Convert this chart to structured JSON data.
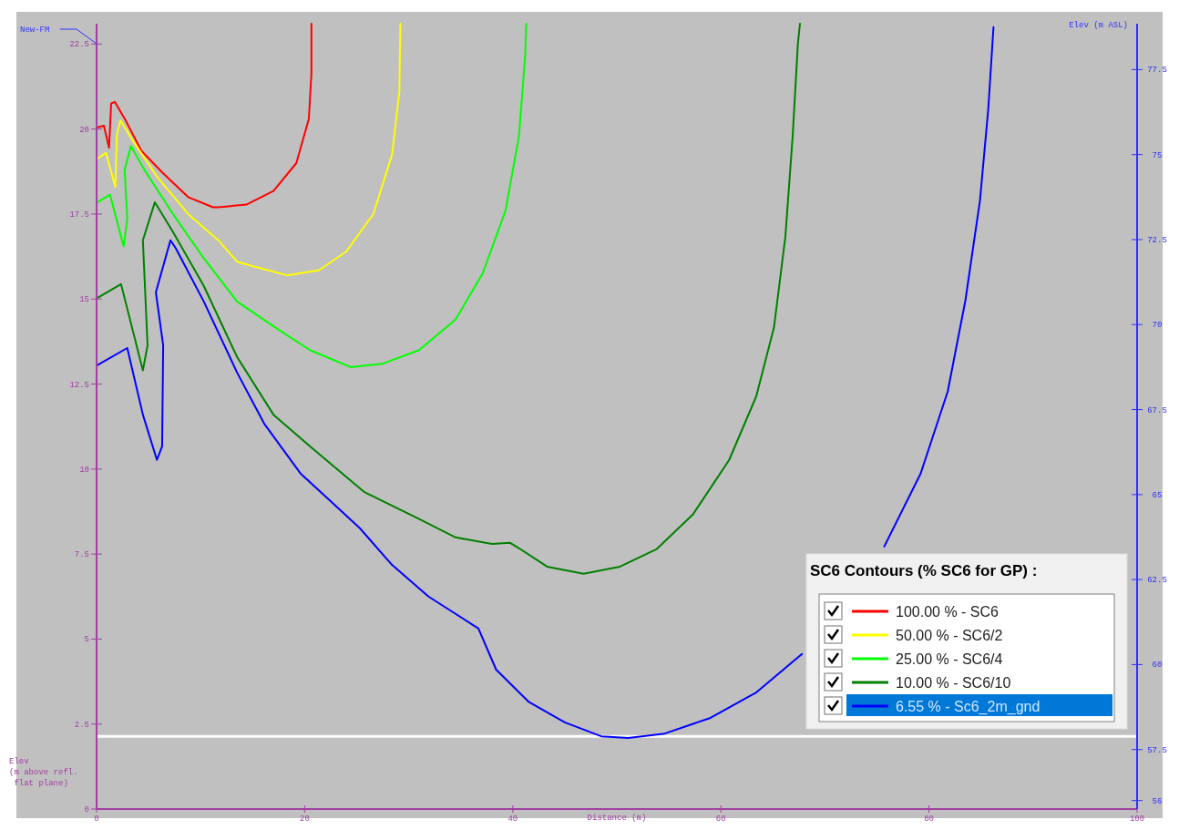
{
  "chart_data": {
    "type": "line",
    "xlabel": "Distance (m)",
    "ylabel": "Elev\n(m above refl.\n flat plane)",
    "y2label": "Elev (m ASL)",
    "legend_title": "SC6 Contours (% SC6 for GP) :",
    "legend": "bottom right",
    "xlim": [
      0,
      100
    ],
    "xticks": [
      0,
      20,
      40,
      60,
      80,
      100
    ],
    "ylim": [
      0,
      23.1
    ],
    "yticks": [
      0,
      2.5,
      5,
      7.5,
      10,
      12.5,
      15,
      17.5,
      20,
      22.5
    ],
    "y2lim": [
      55.75,
      78.85
    ],
    "y2ticks": [
      56,
      57.5,
      60,
      62.5,
      65,
      67.5,
      70,
      72.5,
      75,
      77.5
    ],
    "ref_lines": [
      {
        "axis": "y",
        "value": 2.14,
        "color": "#ffffff"
      }
    ],
    "annotations": [
      "New-FM"
    ],
    "series": [
      {
        "name": "100.00 % - SC6",
        "color": "#ff0000",
        "x": [
          0.1,
          0.7,
          1.2,
          1.4,
          1.75,
          2.8,
          4.3,
          6.4,
          8.8,
          11.2,
          11.7,
          14.4,
          17,
          19.2,
          20.4,
          20.65,
          20.65
        ],
        "values": [
          20.05,
          20.1,
          19.45,
          20.75,
          20.8,
          20.25,
          19.36,
          18.7,
          18.0,
          17.7,
          17.7,
          17.78,
          18.18,
          19,
          20.3,
          21.66,
          23.1
        ]
      },
      {
        "name": "50.00 % - SC6/2",
        "color": "#ffff00",
        "x": [
          0.1,
          0.9,
          1.8,
          1.95,
          2.3,
          3.4,
          5.8,
          8.8,
          11.8,
          13.5,
          15.2,
          18.3,
          21.4,
          24,
          26.6,
          28.4,
          29.1,
          29.2
        ],
        "values": [
          19.14,
          19.3,
          18.3,
          19.84,
          20.25,
          19.7,
          18.6,
          17.5,
          16.7,
          16.1,
          15.95,
          15.7,
          15.85,
          16.4,
          17.5,
          19.25,
          21.1,
          23.1
        ]
      },
      {
        "name": "25.00 % - SC6/4",
        "color": "#00ff00",
        "x": [
          0.1,
          1.3,
          2.6,
          2.95,
          2.7,
          3.3,
          4.6,
          7.35,
          10.3,
          13.5,
          17,
          20.5,
          24.4,
          27.5,
          31,
          34.5,
          37.1,
          39.3,
          40.6,
          41.2,
          41.3
        ],
        "values": [
          17.85,
          18.07,
          16.55,
          17.35,
          18.8,
          19.5,
          18.8,
          17.5,
          16.2,
          14.93,
          14.2,
          13.5,
          13.0,
          13.1,
          13.5,
          14.4,
          15.75,
          17.6,
          19.8,
          22.2,
          23.1
        ]
      },
      {
        "name": "10.00 % - SC6/10",
        "color": "#008000",
        "x": [
          0.1,
          2.35,
          4.45,
          4.9,
          4.45,
          5.6,
          7.35,
          10.3,
          13.5,
          17,
          20.5,
          25.7,
          31,
          34.5,
          38,
          39.75,
          40.6,
          43.3,
          46.8,
          50.3,
          53.8,
          57.3,
          60.8,
          63.4,
          65.1,
          66.2,
          66.9,
          67.4,
          67.6
        ],
        "values": [
          15.04,
          15.44,
          12.9,
          13.64,
          16.73,
          17.85,
          16.97,
          15.39,
          13.3,
          11.6,
          10.67,
          9.33,
          8.53,
          7.99,
          7.8,
          7.83,
          7.67,
          7.13,
          6.92,
          7.13,
          7.64,
          8.66,
          10.27,
          12.14,
          14.16,
          16.84,
          19.8,
          22.5,
          23.1
        ]
      },
      {
        "name": "6.55 % - Sc6_2m_gnd",
        "color": "#0000ff",
        "x": [
          0.1,
          2.95,
          4.45,
          5.8,
          6.3,
          6.4,
          5.7,
          7.1,
          7.6,
          10.3,
          13.5,
          16.1,
          19.6,
          22.2,
          25.3,
          28.4,
          31.9,
          36.7,
          38.4,
          41.5,
          45,
          48.5,
          51.1,
          54.6,
          59,
          63.4,
          67.8,
          72.2,
          75.7,
          79.2,
          81.8,
          83.5,
          84.9,
          85.7,
          86.2
        ],
        "values": [
          13.06,
          13.56,
          11.6,
          10.27,
          10.67,
          13.64,
          15.2,
          16.73,
          16.5,
          14.93,
          12.84,
          11.34,
          9.87,
          9.14,
          8.26,
          7.18,
          6.25,
          5.31,
          4.1,
          3.16,
          2.55,
          2.14,
          2.09,
          2.22,
          2.68,
          3.43,
          4.56,
          null,
          7.72,
          9.87,
          12.28,
          14.96,
          17.9,
          20.6,
          23.0
        ]
      }
    ]
  }
}
